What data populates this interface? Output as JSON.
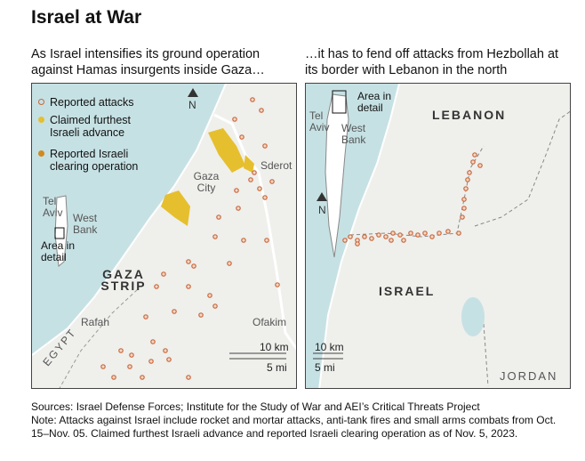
{
  "title": "Israel at War",
  "panels": [
    {
      "caption": "As Israel intensifies its ground operation against Hamas insurgents inside Gaza…",
      "legend": [
        "Reported attacks",
        "Claimed furthest Israeli advance",
        "Reported Israeli clearing operation"
      ],
      "labels": [
        "N",
        "Gaza City",
        "Sderot",
        "Tel Aviv",
        "West Bank",
        "Area in detail",
        "GAZA STRIP",
        "Rafah",
        "EGYPT",
        "Ofakim"
      ],
      "scale": [
        "10 km",
        "5 mi"
      ]
    },
    {
      "caption": "…it has to fend off attacks from Hezbollah at its border with Lebanon in the north",
      "labels": [
        "Area in detail",
        "Tel Aviv",
        "West Bank",
        "N",
        "LEBANON",
        "ISRAEL",
        "JORDAN"
      ],
      "scale": [
        "10 km",
        "5 mi"
      ]
    }
  ],
  "sources": "Sources: Israel Defense Forces; Institute for the Study of War and AEI’s Critical Threats Project",
  "note": "Note: Attacks against Israel include rocket and mortar attacks, anti-tank fires and small arms combats from Oct. 15–Nov. 05. Claimed furthest Israeli advance and reported Israeli clearing operation as of Nov. 5, 2023."
}
